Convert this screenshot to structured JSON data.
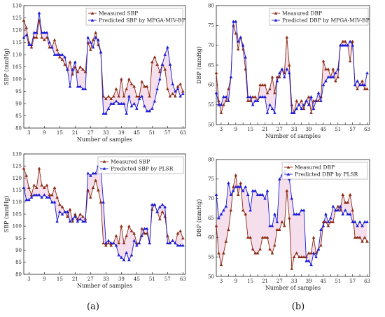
{
  "figure": {
    "panel_labels": [
      "(a)",
      "(b)"
    ],
    "colors": {
      "measured": "#8b2a12",
      "predicted": "#1a1ad6",
      "band": "#f3d7e8"
    }
  },
  "chart_data": [
    {
      "type": "line",
      "xlabel": "Number of samples",
      "ylabel": "SBP (mmHg)",
      "ylim": [
        80,
        130
      ],
      "yticks": [
        80,
        85,
        90,
        95,
        100,
        105,
        110,
        115,
        120,
        125,
        130
      ],
      "xlim": [
        1,
        64
      ],
      "xticks": [
        3,
        9,
        15,
        21,
        27,
        33,
        39,
        45,
        51,
        57,
        63
      ],
      "series": [
        {
          "name": "Measured SBP",
          "values": [
            124,
            121,
            115,
            113,
            117,
            117,
            124,
            117,
            116,
            117,
            113,
            113,
            116,
            112,
            109,
            108,
            106,
            104,
            107,
            102,
            105,
            103,
            105,
            104,
            103,
            115,
            112,
            116,
            119,
            114,
            111,
            93,
            92,
            93,
            92,
            93,
            96,
            93,
            100,
            93,
            96,
            100,
            98,
            97,
            93,
            93,
            99,
            97,
            97,
            93,
            107,
            109,
            106,
            103,
            106,
            104,
            96,
            93,
            94,
            93,
            97,
            98,
            95
          ]
        },
        {
          "name": "Predicted SBP by MPGA-MIV-BP",
          "values": [
            117,
            118,
            114,
            114,
            119,
            119,
            127,
            119,
            119,
            119,
            115,
            113,
            110,
            110,
            110,
            110,
            109,
            104,
            97,
            104,
            107,
            97,
            97,
            96,
            96,
            117,
            115,
            113,
            117,
            116,
            111,
            86,
            86,
            88,
            90,
            90,
            91,
            90,
            90,
            90,
            86,
            93,
            89,
            90,
            88,
            92,
            93,
            89,
            87,
            87,
            88,
            91,
            96,
            100,
            106,
            110,
            113,
            106,
            98,
            95,
            96,
            93,
            94
          ]
        }
      ]
    },
    {
      "type": "line",
      "xlabel": "Number of samples",
      "ylabel": "DBP (mmHg)",
      "ylim": [
        50,
        80
      ],
      "yticks": [
        50,
        55,
        60,
        65,
        70,
        75,
        80
      ],
      "xlim": [
        1,
        64
      ],
      "xticks": [
        3,
        6,
        9,
        12,
        15,
        18,
        21,
        24,
        27,
        30,
        33,
        36,
        39,
        42,
        45,
        48,
        51,
        54,
        57,
        60,
        63
      ],
      "xticklabels": [
        3,
        9,
        15,
        21,
        27,
        33,
        39,
        45,
        51,
        57,
        63
      ],
      "series": [
        {
          "name": "Measured DBP",
          "values": [
            63,
            56,
            53,
            55,
            56,
            59,
            62,
            75,
            73,
            69,
            72,
            69,
            64,
            56,
            56,
            57,
            57,
            56,
            60,
            60,
            60,
            58,
            59,
            62,
            58,
            62,
            62,
            64,
            63,
            72,
            65,
            55,
            53,
            56,
            55,
            56,
            54,
            56,
            57,
            53,
            56,
            56,
            56,
            57,
            66,
            64,
            64,
            62,
            64,
            61,
            62,
            70,
            71,
            71,
            70,
            66,
            71,
            60,
            59,
            60,
            61,
            59,
            59
          ]
        },
        {
          "name": "Predicted DBP by MPGA-MIV-BP",
          "values": [
            58,
            55,
            55,
            57,
            57,
            56,
            62,
            76,
            76,
            71,
            72,
            70,
            67,
            57,
            57,
            55,
            56,
            56,
            57,
            57,
            57,
            53,
            55,
            54,
            53,
            61,
            63,
            64,
            62,
            64,
            63,
            53,
            53,
            54,
            55,
            54,
            55,
            56,
            55,
            57,
            54,
            56,
            58,
            56,
            60,
            61,
            62,
            62,
            62,
            63,
            64,
            70,
            70,
            70,
            70,
            71,
            70,
            60,
            61,
            60,
            60,
            60,
            63
          ]
        }
      ]
    },
    {
      "type": "line",
      "xlabel": "Number of samples",
      "ylabel": "SBP (mmHg)",
      "ylim": [
        80,
        130
      ],
      "yticks": [
        80,
        85,
        90,
        95,
        100,
        105,
        110,
        115,
        120,
        125,
        130
      ],
      "xlim": [
        1,
        64
      ],
      "xticks": [
        3,
        9,
        15,
        21,
        27,
        33,
        39,
        45,
        51,
        57,
        63
      ],
      "series": [
        {
          "name": "Measured SBP",
          "values": [
            124,
            121,
            116,
            113,
            117,
            116,
            124,
            117,
            116,
            117,
            113,
            113,
            116,
            112,
            109,
            108,
            106,
            104,
            107,
            102,
            105,
            103,
            105,
            104,
            103,
            115,
            112,
            116,
            119,
            115,
            110,
            93,
            92,
            93,
            92,
            93,
            96,
            93,
            100,
            93,
            96,
            100,
            98,
            97,
            93,
            93,
            99,
            97,
            97,
            93,
            107,
            109,
            106,
            103,
            106,
            104,
            96,
            93,
            94,
            93,
            97,
            98,
            95
          ]
        },
        {
          "name": "Predicted SBP by PLSR",
          "values": [
            116,
            111,
            111,
            112,
            113,
            113,
            113,
            112,
            113,
            112,
            112,
            110,
            110,
            102,
            106,
            105,
            106,
            106,
            102,
            103,
            104,
            102,
            103,
            102,
            102,
            122,
            121,
            122,
            122,
            125,
            124,
            110,
            93,
            94,
            93,
            93,
            92,
            88,
            87,
            86,
            89,
            86,
            88,
            94,
            92,
            93,
            96,
            99,
            99,
            93,
            109,
            109,
            106,
            108,
            109,
            108,
            93,
            93,
            94,
            93,
            92,
            92,
            92
          ]
        }
      ]
    },
    {
      "type": "line",
      "xlabel": "Number of samples",
      "ylabel": "DBP (mmHg)",
      "ylim": [
        50,
        80
      ],
      "yticks": [
        50,
        55,
        60,
        65,
        70,
        75,
        80
      ],
      "xlim": [
        1,
        64
      ],
      "xticks": [
        3,
        6,
        9,
        12,
        15,
        18,
        21,
        24,
        27,
        30,
        33,
        36,
        39,
        42,
        45,
        48,
        51,
        54,
        57,
        60,
        63
      ],
      "xticklabels": [
        3,
        9,
        15,
        21,
        27,
        33,
        39,
        45,
        51,
        57,
        63
      ],
      "series": [
        {
          "name": "Measured DBP",
          "values": [
            63,
            56,
            53,
            56,
            59,
            62,
            67,
            73,
            76,
            71,
            74,
            67,
            66,
            60,
            60,
            57,
            56,
            56,
            57,
            60,
            60,
            60,
            57,
            56,
            58,
            62,
            62,
            64,
            63,
            72,
            65,
            52,
            55,
            56,
            55,
            55,
            55,
            55,
            56,
            56,
            60,
            56,
            57,
            58,
            64,
            64,
            63,
            64,
            64,
            67,
            68,
            67,
            71,
            69,
            69,
            71,
            67,
            60,
            60,
            60,
            59,
            60,
            59
          ]
        },
        {
          "name": "Predicted DBP by PLSR",
          "values": [
            71,
            65,
            66,
            67,
            68,
            74,
            71,
            72,
            73,
            73,
            73,
            72,
            73,
            71,
            67,
            72,
            72,
            71,
            71,
            71,
            70,
            72,
            63,
            63,
            66,
            64,
            75,
            76,
            77,
            76,
            75,
            70,
            66,
            66,
            66,
            67,
            67,
            54,
            54,
            53,
            56,
            55,
            57,
            62,
            63,
            66,
            64,
            65,
            68,
            67,
            67,
            68,
            66,
            67,
            66,
            66,
            64,
            64,
            63,
            64,
            63,
            64,
            64
          ]
        }
      ]
    }
  ]
}
